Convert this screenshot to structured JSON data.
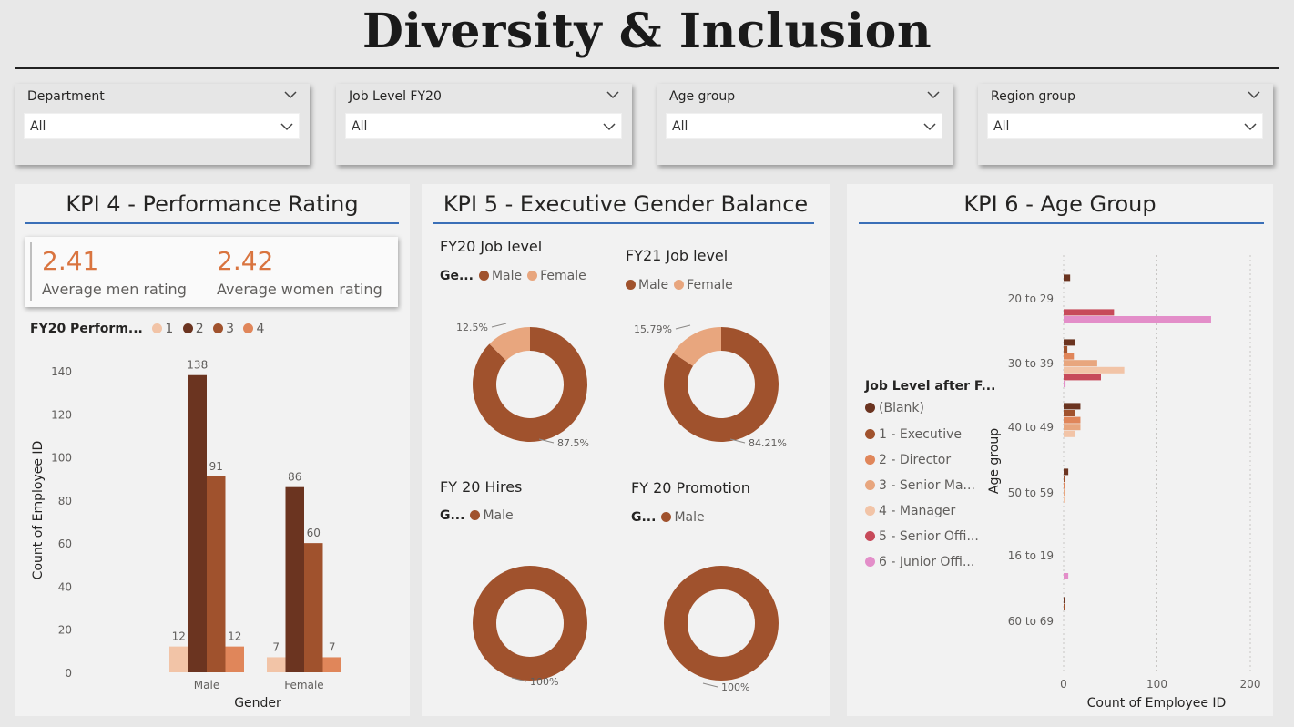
{
  "page": {
    "title": "Diversity & Inclusion"
  },
  "slicers": [
    {
      "label": "Department",
      "value": "All"
    },
    {
      "label": "Job Level FY20",
      "value": "All"
    },
    {
      "label": "Age group",
      "value": "All"
    },
    {
      "label": "Region group",
      "value": "All"
    }
  ],
  "kpi4": {
    "title": "KPI 4 - Performance Rating",
    "men_value": "2.41",
    "men_label": "Average men rating",
    "women_value": "2.42",
    "women_label": "Average women rating",
    "legend_title": "FY20 Perform...",
    "legend_items": [
      "1",
      "2",
      "3",
      "4"
    ]
  },
  "kpi5": {
    "title": "KPI 5 - Executive Gender Balance",
    "fy20_title": "FY20 Job level",
    "fy20_legend_title": "Ge...",
    "fy21_title": "FY21 Job level",
    "hires_title": "FY 20 Hires",
    "hires_legend_title": "G...",
    "promo_title": "FY 20 Promotion",
    "promo_legend_title": "G...",
    "male": "Male",
    "female": "Female"
  },
  "kpi6": {
    "title": "KPI 6 - Age Group",
    "legend_title": "Job Level after F...",
    "legend_items": [
      "(Blank)",
      "1 - Executive",
      "2 - Director",
      "3 - Senior Ma...",
      "4 - Manager",
      "5 - Senior Offi...",
      "6 - Junior Offi..."
    ]
  },
  "colors": {
    "rating_1": "#f2c4a7",
    "rating_2": "#6b3420",
    "rating_3": "#a0522d",
    "rating_4": "#e0865a",
    "male": "#a0522d",
    "female": "#e8a67e",
    "blank": "#6b3420",
    "executive": "#a0522d",
    "director": "#e0865a",
    "senior_manager": "#e8a67e",
    "manager": "#f2c4a7",
    "senior_officer": "#c74a5a",
    "junior_officer": "#e38ec9",
    "accent_rule": "#3a6fb7"
  },
  "chart_data": [
    {
      "type": "bar",
      "id": "performance_by_gender",
      "categories": [
        "Male",
        "Female"
      ],
      "series": [
        {
          "name": "1",
          "values": [
            12,
            7
          ]
        },
        {
          "name": "2",
          "values": [
            138,
            86
          ]
        },
        {
          "name": "3",
          "values": [
            91,
            60
          ]
        },
        {
          "name": "4",
          "values": [
            12,
            7
          ]
        }
      ],
      "xlabel": "Gender",
      "ylabel": "Count of Employee ID",
      "ylim": [
        0,
        140
      ],
      "yticks": [
        0,
        20,
        40,
        60,
        80,
        100,
        120,
        140
      ],
      "data_labels": true,
      "legend_placement": "top-left",
      "grid": false
    },
    {
      "type": "pie",
      "id": "fy20_job_level",
      "title": "FY20 Job level",
      "labels": [
        "Male",
        "Female"
      ],
      "values": [
        87.5,
        12.5
      ],
      "value_labels": [
        "87.5%",
        "12.5%"
      ]
    },
    {
      "type": "pie",
      "id": "fy21_job_level",
      "title": "FY21 Job level",
      "labels": [
        "Male",
        "Female"
      ],
      "values": [
        84.21,
        15.79
      ],
      "value_labels": [
        "84.21%",
        "15.79%"
      ]
    },
    {
      "type": "pie",
      "id": "fy20_hires",
      "title": "FY 20 Hires",
      "labels": [
        "Male"
      ],
      "values": [
        100
      ],
      "value_labels": [
        "100%"
      ]
    },
    {
      "type": "pie",
      "id": "fy20_promotion",
      "title": "FY 20 Promotion",
      "labels": [
        "Male"
      ],
      "values": [
        100
      ],
      "value_labels": [
        "100%"
      ]
    },
    {
      "type": "bar",
      "id": "age_group",
      "orientation": "horizontal",
      "categories": [
        "20 to 29",
        "30 to 39",
        "40 to 49",
        "50 to 59",
        "16 to 19",
        "60 to 69"
      ],
      "series": [
        {
          "name": "(Blank)",
          "values": [
            7,
            12,
            18,
            5,
            0,
            1
          ]
        },
        {
          "name": "1 - Executive",
          "values": [
            0,
            4,
            12,
            1,
            0,
            1
          ]
        },
        {
          "name": "2 - Director",
          "values": [
            0,
            11,
            18,
            1,
            0,
            0
          ]
        },
        {
          "name": "3 - Senior Ma...",
          "values": [
            0,
            36,
            18,
            1,
            0,
            0
          ]
        },
        {
          "name": "4 - Manager",
          "values": [
            0,
            65,
            12,
            1,
            0,
            0
          ]
        },
        {
          "name": "5 - Senior Offi...",
          "values": [
            54,
            40,
            0,
            0,
            0,
            0
          ]
        },
        {
          "name": "6 - Junior Offi...",
          "values": [
            158,
            2,
            0,
            0,
            5,
            0
          ]
        }
      ],
      "xlabel": "Count of Employee ID",
      "ylabel": "Age group",
      "xlim": [
        0,
        200
      ],
      "xticks": [
        0,
        100,
        200
      ],
      "grid": true,
      "legend_placement": "left"
    }
  ]
}
